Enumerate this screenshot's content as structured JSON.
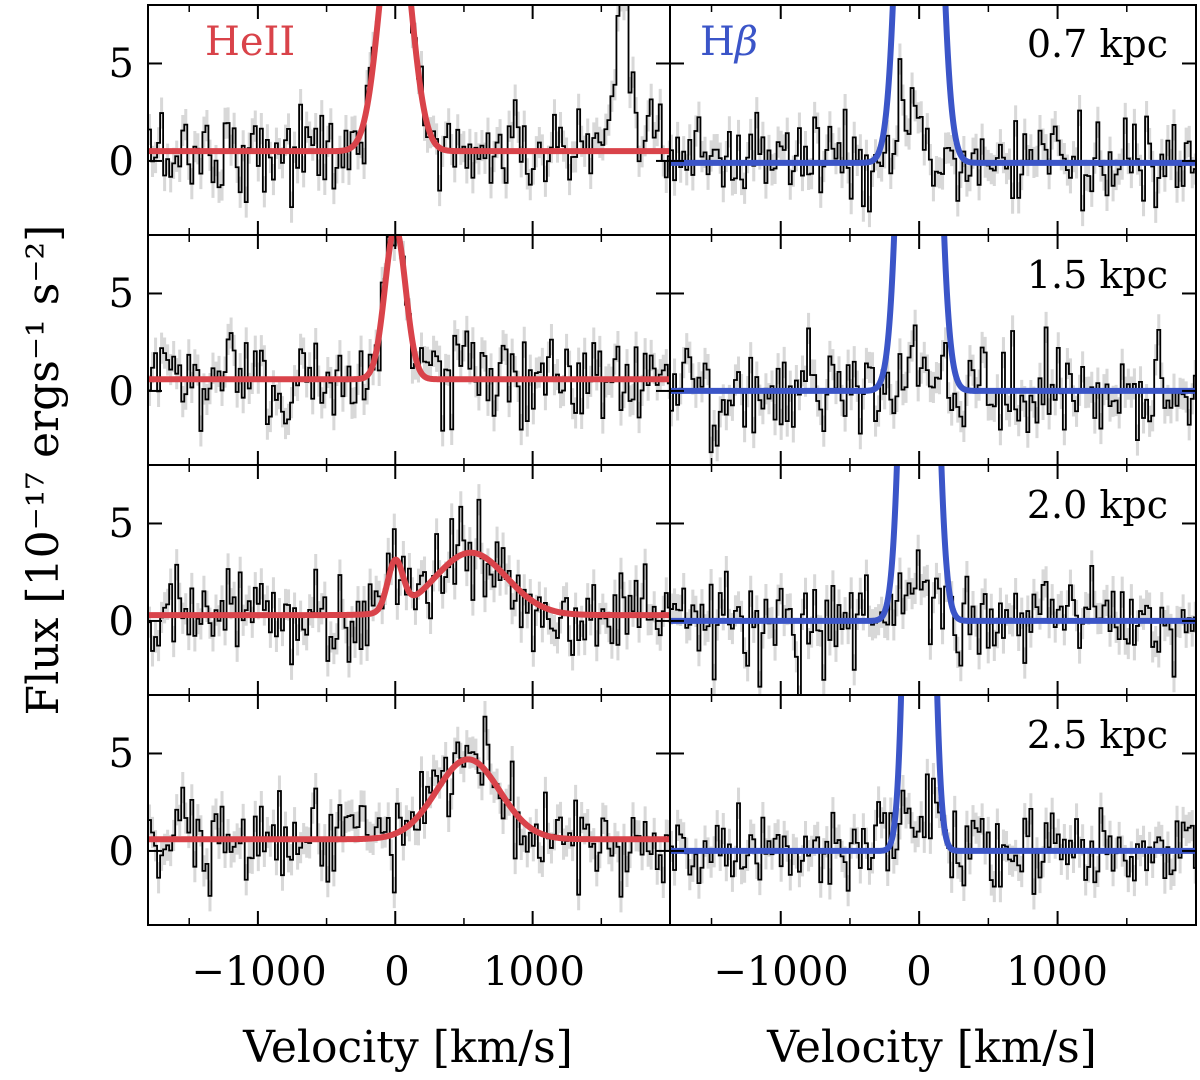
{
  "chart_data": {
    "type": "line",
    "title": "",
    "xlabel": "Velocity [km/s]",
    "ylabel": "Flux [10⁻¹⁷ ergs⁻¹ s⁻²]",
    "xlim": [
      -1800,
      2000
    ],
    "ylim": [
      -3.8,
      8.0
    ],
    "xticks": [
      -1000,
      0,
      1000
    ],
    "xtick_labels": [
      "−1000",
      "0",
      "1000"
    ],
    "yticks": [
      0,
      5
    ],
    "ytick_labels": [
      "0",
      "5"
    ],
    "columns": [
      {
        "line": "HeII",
        "label_main": "HeII",
        "label_italic": "",
        "color": "#d9434a"
      },
      {
        "line": "Hbeta",
        "label_main": "H",
        "label_italic": "β",
        "color": "#3b55c8"
      }
    ],
    "distances": [
      "0.7 kpc",
      "1.5 kpc",
      "2.0 kpc",
      "2.5 kpc"
    ],
    "fits": [
      {
        "HeII": {
          "baseline": 0.5,
          "components": [
            {
              "amp": 13.0,
              "center": 0,
              "sigma": 110
            }
          ]
        },
        "Hbeta": {
          "baseline": -0.1,
          "components": [
            {
              "amp": 60.0,
              "center": 0,
              "sigma": 95
            }
          ]
        }
      },
      {
        "HeII": {
          "baseline": 0.6,
          "components": [
            {
              "amp": 7.8,
              "center": 0,
              "sigma": 75
            }
          ]
        },
        "Hbeta": {
          "baseline": 0.0,
          "components": [
            {
              "amp": 60.0,
              "center": 0,
              "sigma": 90
            }
          ]
        }
      },
      {
        "HeII": {
          "baseline": 0.3,
          "components": [
            {
              "amp": 2.5,
              "center": 0,
              "sigma": 55
            },
            {
              "amp": 3.2,
              "center": 550,
              "sigma": 260
            }
          ]
        },
        "Hbeta": {
          "baseline": 0.0,
          "components": [
            {
              "amp": 60.0,
              "center": 0,
              "sigma": 80
            }
          ]
        }
      },
      {
        "HeII": {
          "baseline": 0.6,
          "components": [
            {
              "amp": 4.1,
              "center": 530,
              "sigma": 230
            }
          ]
        },
        "Hbeta": {
          "baseline": 0.0,
          "components": [
            {
              "amp": 60.0,
              "center": 0,
              "sigma": 65
            }
          ]
        }
      }
    ],
    "extra_features": [
      {
        "row": 0,
        "line": "HeII",
        "center": 1650,
        "amp": 7.0,
        "sigma": 45,
        "note": "neighbouring emission line in data"
      }
    ],
    "data_series": "observed spectrum (black histogram) with 1σ error band (light grey)"
  }
}
